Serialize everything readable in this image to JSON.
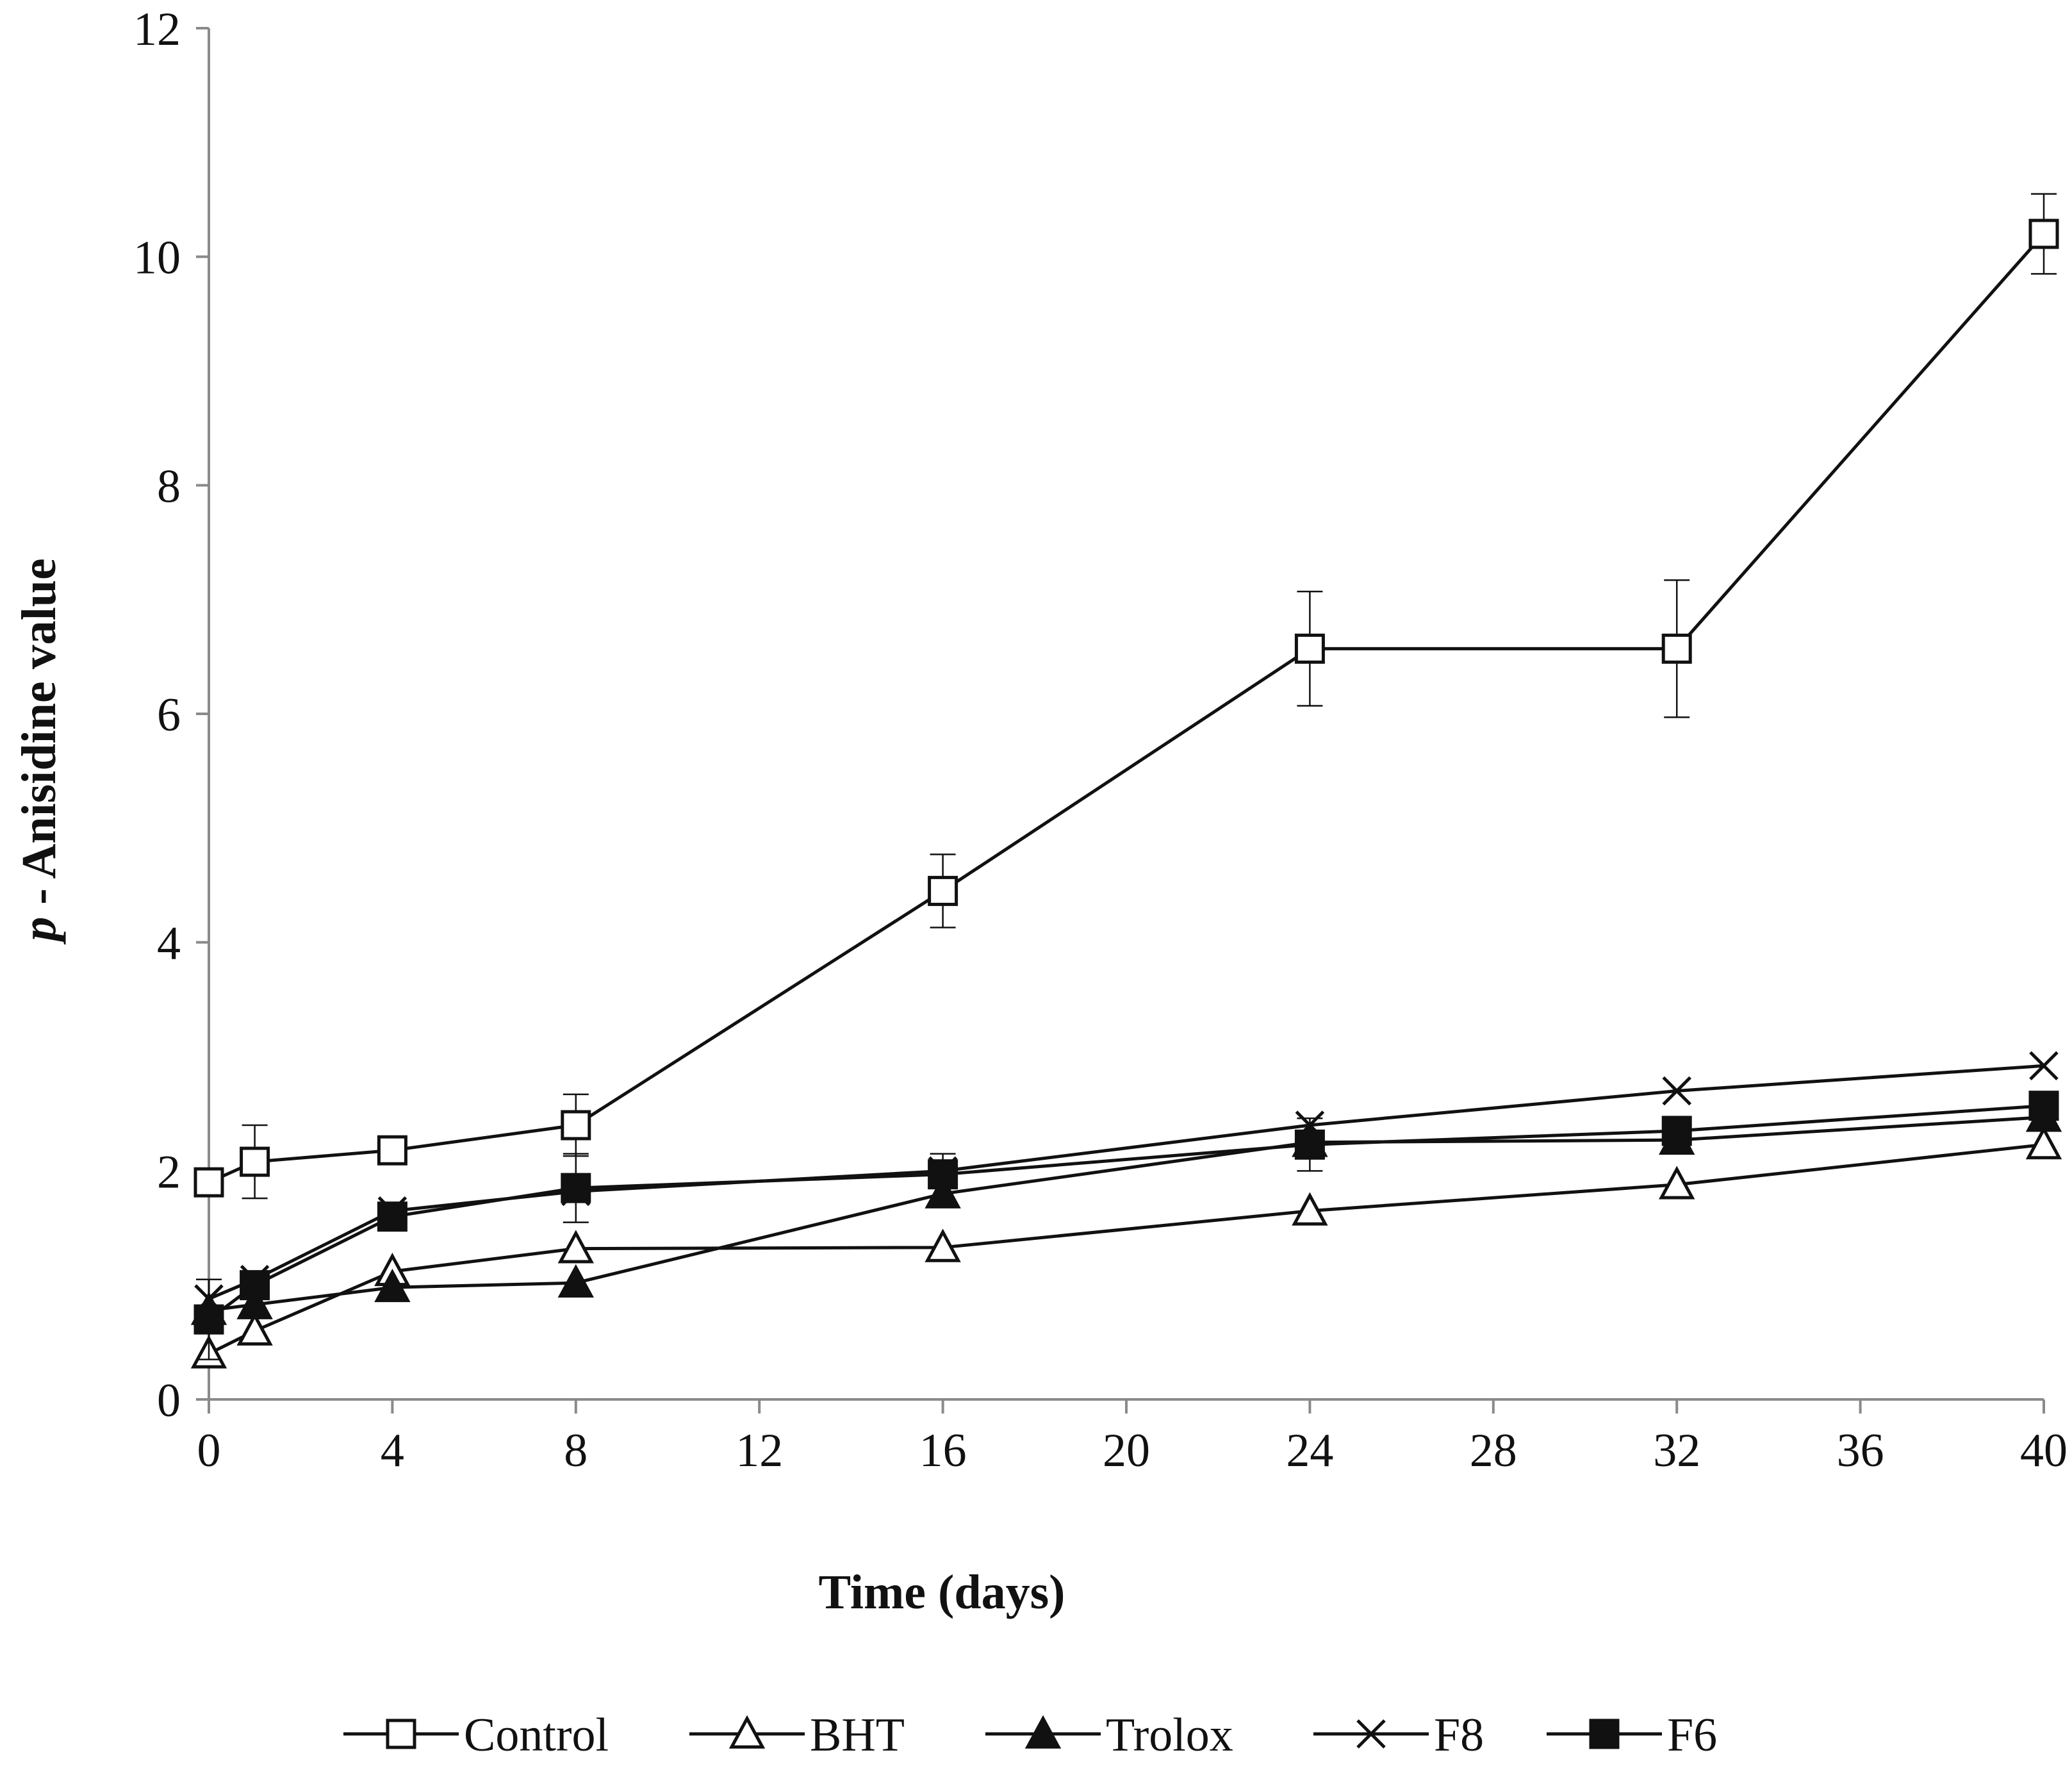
{
  "chart_data": {
    "type": "line",
    "title": "",
    "xlabel": "Time (days)",
    "ylabel_italic": "p",
    "ylabel_rest": " - Anisidine value",
    "xlim": [
      0,
      40
    ],
    "ylim": [
      0,
      12
    ],
    "xticks": [
      0,
      4,
      8,
      12,
      16,
      20,
      24,
      28,
      32,
      36,
      40
    ],
    "yticks": [
      0,
      2,
      4,
      6,
      8,
      10,
      12
    ],
    "grid": false,
    "legend_position": "bottom",
    "x": [
      0,
      1,
      4,
      8,
      16,
      24,
      32,
      40
    ],
    "series": [
      {
        "name": "Control",
        "marker": "open-square",
        "values": [
          1.9,
          2.08,
          2.18,
          2.4,
          4.45,
          6.57,
          6.57,
          10.2
        ],
        "errors": [
          0.0,
          0.32,
          0.0,
          0.27,
          0.32,
          0.5,
          0.6,
          0.35
        ]
      },
      {
        "name": "BHT",
        "marker": "open-triangle",
        "values": [
          0.4,
          0.6,
          1.12,
          1.32,
          1.33,
          1.65,
          1.88,
          2.23
        ],
        "errors": [
          0.0,
          0.0,
          0.0,
          0.0,
          0.0,
          0.0,
          0.0,
          0.0
        ]
      },
      {
        "name": "Trolox",
        "marker": "filled-triangle",
        "values": [
          0.78,
          0.83,
          0.98,
          1.02,
          1.8,
          2.25,
          2.27,
          2.47
        ],
        "errors": [
          0.0,
          0.0,
          0.0,
          0.0,
          0.0,
          0.0,
          0.0,
          0.0
        ]
      },
      {
        "name": "F8",
        "marker": "x",
        "values": [
          0.88,
          1.05,
          1.65,
          1.82,
          2.0,
          2.4,
          2.7,
          2.92
        ],
        "errors": [
          0.0,
          0.0,
          0.0,
          0.0,
          0.15,
          0.0,
          0.0,
          0.0
        ]
      },
      {
        "name": "F6",
        "marker": "filled-square",
        "values": [
          0.7,
          1.0,
          1.6,
          1.85,
          1.97,
          2.23,
          2.35,
          2.57
        ],
        "errors": [
          0.35,
          0.0,
          0.0,
          0.3,
          0.0,
          0.23,
          0.0,
          0.0
        ]
      }
    ]
  }
}
